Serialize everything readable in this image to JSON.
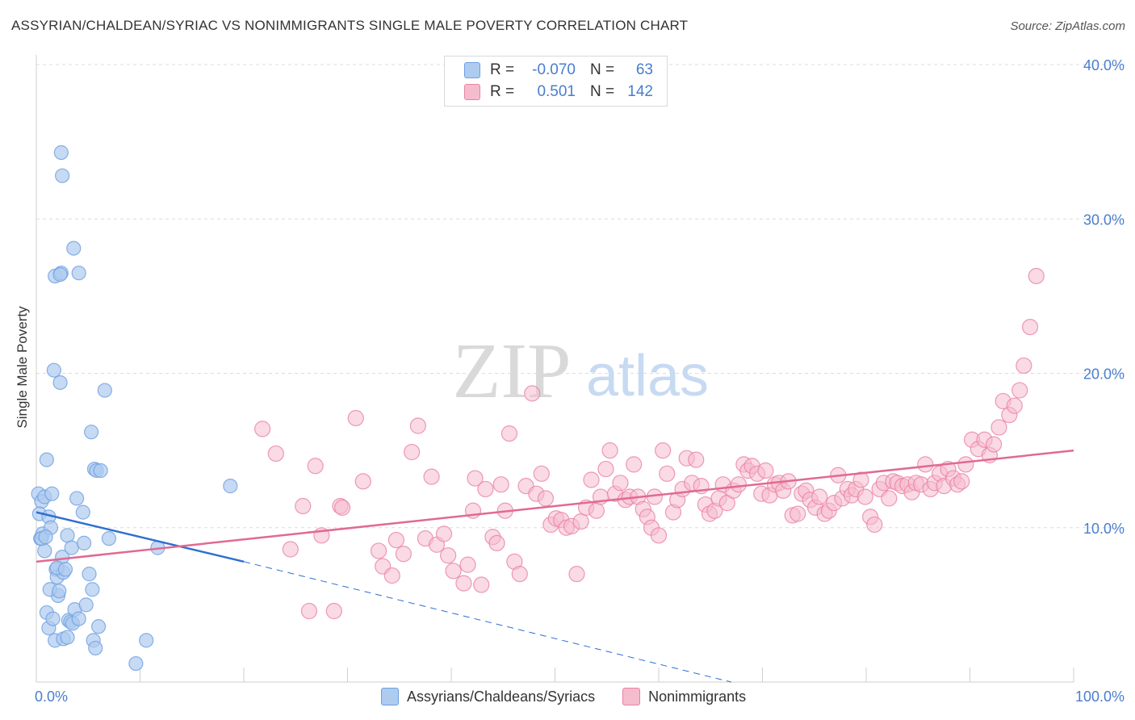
{
  "title": "ASSYRIAN/CHALDEAN/SYRIAC VS NONIMMIGRANTS SINGLE MALE POVERTY CORRELATION CHART",
  "source": "Source: ZipAtlas.com",
  "watermark": {
    "zip": "ZIP",
    "atlas": "atlas"
  },
  "legend": {
    "rows": [
      {
        "r_label": "R =",
        "r_value": "-0.070",
        "n_label": "N =",
        "n_value": "63",
        "color": "#a9c8f0"
      },
      {
        "r_label": "R =",
        "r_value": "0.501",
        "n_label": "N =",
        "n_value": "142",
        "color": "#f5b8cb"
      }
    ]
  },
  "chart_data": {
    "type": "scatter",
    "title": "ASSYRIAN/CHALDEAN/SYRIAC VS NONIMMIGRANTS SINGLE MALE POVERTY CORRELATION CHART",
    "xlabel": "",
    "ylabel": "Single Male Poverty",
    "xlim": [
      0,
      100
    ],
    "ylim": [
      0,
      40
    ],
    "x_tick_labels": [
      "0.0%",
      "100.0%"
    ],
    "y_ticks": [
      10,
      20,
      30,
      40
    ],
    "y_tick_labels": [
      "10.0%",
      "20.0%",
      "30.0%",
      "40.0%"
    ],
    "grid": true,
    "legend_position": "bottom",
    "series": [
      {
        "name": "Assyrians/Chaldeans/Syriacs",
        "color": "#6d9fe0",
        "fill": "#aecbf0",
        "trend": {
          "x0": 0,
          "y0": 11.0,
          "x1": 20,
          "y1": 7.8,
          "dash_to_x": 67,
          "dash_to_y": 0
        },
        "points": [
          [
            0.2,
            12.2
          ],
          [
            0.5,
            11.7
          ],
          [
            0.3,
            10.9
          ],
          [
            0.4,
            9.3
          ],
          [
            0.6,
            9.6
          ],
          [
            0.8,
            8.5
          ],
          [
            0.8,
            12.0
          ],
          [
            1.0,
            14.4
          ],
          [
            1.2,
            10.7
          ],
          [
            1.4,
            10.0
          ],
          [
            1.5,
            12.2
          ],
          [
            1.7,
            20.2
          ],
          [
            1.8,
            26.3
          ],
          [
            1.9,
            7.3
          ],
          [
            2.0,
            6.8
          ],
          [
            2.1,
            5.6
          ],
          [
            2.3,
            19.4
          ],
          [
            2.5,
            8.1
          ],
          [
            2.6,
            7.1
          ],
          [
            2.4,
            26.5
          ],
          [
            2.3,
            26.4
          ],
          [
            2.4,
            34.3
          ],
          [
            2.5,
            32.8
          ],
          [
            3.0,
            9.5
          ],
          [
            3.1,
            4.0
          ],
          [
            3.3,
            3.9
          ],
          [
            3.4,
            8.7
          ],
          [
            3.5,
            3.8
          ],
          [
            3.6,
            28.1
          ],
          [
            3.7,
            4.7
          ],
          [
            3.9,
            11.9
          ],
          [
            4.1,
            4.1
          ],
          [
            4.1,
            26.5
          ],
          [
            4.5,
            11.0
          ],
          [
            4.6,
            9.0
          ],
          [
            4.8,
            5.0
          ],
          [
            5.1,
            7.0
          ],
          [
            5.3,
            16.2
          ],
          [
            5.4,
            6.0
          ],
          [
            5.5,
            2.7
          ],
          [
            5.6,
            13.8
          ],
          [
            5.7,
            2.2
          ],
          [
            5.8,
            13.7
          ],
          [
            6.0,
            3.6
          ],
          [
            6.2,
            13.7
          ],
          [
            6.6,
            18.9
          ],
          [
            7.0,
            9.3
          ],
          [
            1.0,
            4.5
          ],
          [
            1.2,
            3.5
          ],
          [
            1.3,
            6.0
          ],
          [
            1.6,
            4.1
          ],
          [
            1.8,
            2.7
          ],
          [
            2.0,
            7.4
          ],
          [
            2.6,
            2.8
          ],
          [
            3.0,
            2.9
          ],
          [
            9.6,
            1.2
          ],
          [
            10.6,
            2.7
          ],
          [
            11.7,
            8.7
          ],
          [
            18.7,
            12.7
          ],
          [
            0.5,
            9.3
          ],
          [
            0.9,
            9.4
          ],
          [
            2.2,
            5.9
          ],
          [
            2.8,
            7.3
          ]
        ]
      },
      {
        "name": "Nonimmigrants",
        "color": "#e882a4",
        "fill": "#f5bccd",
        "trend": {
          "x0": 0,
          "y0": 7.8,
          "x1": 100,
          "y1": 15.0
        },
        "points": [
          [
            21.8,
            16.4
          ],
          [
            23.1,
            14.8
          ],
          [
            24.5,
            8.6
          ],
          [
            25.7,
            11.4
          ],
          [
            26.3,
            4.6
          ],
          [
            26.9,
            14.0
          ],
          [
            27.5,
            9.5
          ],
          [
            28.7,
            4.6
          ],
          [
            29.3,
            11.4
          ],
          [
            29.5,
            11.3
          ],
          [
            30.8,
            17.1
          ],
          [
            31.5,
            13.0
          ],
          [
            33.0,
            8.5
          ],
          [
            33.4,
            7.5
          ],
          [
            34.3,
            6.9
          ],
          [
            34.7,
            9.2
          ],
          [
            35.4,
            8.3
          ],
          [
            36.2,
            14.9
          ],
          [
            36.8,
            16.6
          ],
          [
            37.5,
            9.3
          ],
          [
            38.1,
            13.3
          ],
          [
            38.6,
            8.9
          ],
          [
            39.3,
            9.6
          ],
          [
            39.7,
            8.2
          ],
          [
            40.2,
            7.2
          ],
          [
            41.2,
            6.4
          ],
          [
            41.6,
            7.6
          ],
          [
            42.1,
            11.1
          ],
          [
            42.3,
            13.2
          ],
          [
            42.9,
            6.3
          ],
          [
            43.3,
            12.5
          ],
          [
            44.0,
            9.4
          ],
          [
            44.4,
            9.0
          ],
          [
            44.8,
            12.8
          ],
          [
            45.2,
            11.1
          ],
          [
            45.6,
            16.1
          ],
          [
            46.1,
            7.8
          ],
          [
            46.6,
            7.0
          ],
          [
            47.2,
            12.7
          ],
          [
            47.8,
            18.7
          ],
          [
            48.2,
            12.2
          ],
          [
            48.7,
            13.5
          ],
          [
            49.1,
            11.9
          ],
          [
            49.6,
            10.2
          ],
          [
            50.1,
            10.6
          ],
          [
            50.6,
            10.5
          ],
          [
            51.1,
            10.0
          ],
          [
            51.6,
            10.1
          ],
          [
            52.1,
            7.0
          ],
          [
            52.5,
            10.4
          ],
          [
            53.0,
            11.3
          ],
          [
            53.5,
            13.1
          ],
          [
            54.0,
            11.1
          ],
          [
            54.4,
            12.0
          ],
          [
            54.9,
            13.8
          ],
          [
            55.3,
            15.0
          ],
          [
            55.8,
            12.2
          ],
          [
            56.3,
            12.9
          ],
          [
            56.8,
            11.8
          ],
          [
            57.2,
            12.0
          ],
          [
            57.6,
            14.1
          ],
          [
            58.0,
            12.0
          ],
          [
            58.5,
            11.2
          ],
          [
            58.9,
            10.7
          ],
          [
            59.3,
            10.0
          ],
          [
            59.6,
            12.0
          ],
          [
            60.0,
            9.5
          ],
          [
            60.4,
            15.0
          ],
          [
            60.8,
            13.5
          ],
          [
            61.4,
            11.0
          ],
          [
            61.8,
            11.8
          ],
          [
            62.3,
            12.5
          ],
          [
            62.7,
            14.5
          ],
          [
            63.2,
            12.9
          ],
          [
            63.6,
            14.4
          ],
          [
            64.1,
            12.7
          ],
          [
            64.5,
            11.5
          ],
          [
            64.9,
            10.9
          ],
          [
            65.4,
            11.1
          ],
          [
            65.8,
            11.9
          ],
          [
            66.2,
            12.8
          ],
          [
            66.6,
            11.6
          ],
          [
            67.2,
            12.4
          ],
          [
            67.7,
            12.8
          ],
          [
            68.2,
            14.1
          ],
          [
            68.6,
            13.7
          ],
          [
            69.0,
            14.0
          ],
          [
            69.5,
            13.5
          ],
          [
            69.9,
            12.2
          ],
          [
            70.3,
            13.7
          ],
          [
            70.7,
            12.1
          ],
          [
            71.2,
            12.8
          ],
          [
            71.6,
            12.9
          ],
          [
            72.0,
            12.4
          ],
          [
            72.5,
            13.0
          ],
          [
            72.9,
            10.8
          ],
          [
            73.4,
            10.9
          ],
          [
            73.8,
            12.2
          ],
          [
            74.2,
            12.4
          ],
          [
            74.6,
            11.8
          ],
          [
            75.1,
            11.3
          ],
          [
            75.5,
            12.0
          ],
          [
            76.0,
            10.9
          ],
          [
            76.4,
            11.1
          ],
          [
            76.9,
            11.6
          ],
          [
            77.3,
            13.4
          ],
          [
            77.7,
            11.9
          ],
          [
            78.2,
            12.5
          ],
          [
            78.6,
            12.1
          ],
          [
            79.0,
            12.5
          ],
          [
            79.5,
            13.1
          ],
          [
            79.9,
            12.0
          ],
          [
            80.4,
            10.7
          ],
          [
            80.8,
            10.2
          ],
          [
            81.3,
            12.5
          ],
          [
            81.7,
            12.9
          ],
          [
            82.2,
            11.9
          ],
          [
            82.6,
            13.0
          ],
          [
            83.0,
            12.9
          ],
          [
            83.5,
            12.7
          ],
          [
            84.0,
            12.8
          ],
          [
            84.4,
            12.3
          ],
          [
            84.8,
            12.9
          ],
          [
            85.3,
            12.8
          ],
          [
            85.7,
            14.1
          ],
          [
            86.2,
            12.5
          ],
          [
            86.6,
            12.9
          ],
          [
            87.1,
            13.5
          ],
          [
            87.5,
            12.7
          ],
          [
            87.9,
            13.8
          ],
          [
            88.4,
            13.2
          ],
          [
            88.8,
            12.8
          ],
          [
            89.2,
            13.0
          ],
          [
            89.6,
            14.1
          ],
          [
            90.2,
            15.7
          ],
          [
            90.8,
            15.1
          ],
          [
            91.4,
            15.7
          ],
          [
            91.9,
            14.7
          ],
          [
            92.3,
            15.4
          ],
          [
            92.8,
            16.5
          ],
          [
            93.2,
            18.2
          ],
          [
            93.8,
            17.3
          ],
          [
            94.3,
            17.9
          ],
          [
            94.8,
            18.9
          ],
          [
            95.2,
            20.5
          ],
          [
            95.8,
            23.0
          ],
          [
            96.4,
            26.3
          ]
        ]
      }
    ]
  }
}
